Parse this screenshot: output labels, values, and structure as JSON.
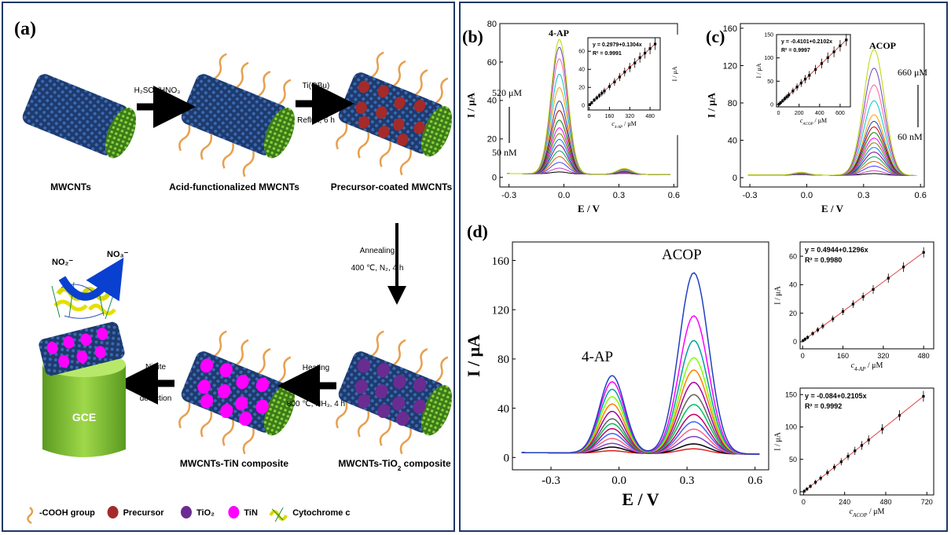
{
  "panel_a": {
    "label": "(a)",
    "steps": {
      "mwcnts": "MWCNTs",
      "acid": "Acid-functionalized MWCNTs",
      "precursor": "Precursor-coated MWCNTs",
      "tio2": "MWCNTs-TiO",
      "tio2_sub": "2",
      "tio2_tail": " composite",
      "tin": "MWCNTs-TiN composite",
      "gce": "GCE"
    },
    "arrows": {
      "a1": "H₂SO₄/HNO₃",
      "a2_line1": "Ti(OBu)",
      "a2_line2": "Reflux, 6 h",
      "a3_line1": "Annealing",
      "a3_line2": "400 ℃, N₂, 4 h",
      "a4_line1": "Heating",
      "a4_line2": "800 ℃, NH₃, 4 h",
      "a5_line1": "Nitrite",
      "a5_line2": "detection"
    },
    "ions": {
      "nitrite": "NO₂⁻",
      "nitrate": "NO₃⁻"
    },
    "legend": [
      {
        "label": "-COOH group",
        "icon": "cooh-squiggle-icon",
        "color": "#e6a050"
      },
      {
        "label": "Precursor",
        "icon": "precursor-dot-icon",
        "color": "#a52a2a"
      },
      {
        "label": "TiO₂",
        "icon": "tio2-dot-icon",
        "color": "#6a2c91"
      },
      {
        "label": "TiN",
        "icon": "tin-dot-icon",
        "color": "#ff00ff"
      },
      {
        "label": "Cytochrome c",
        "icon": "protein-icon",
        "color": "#d8d800"
      }
    ],
    "colors": {
      "tube": "#1e3a6e",
      "cap": "#5a9a2a",
      "gce": "#8ccf3a"
    }
  },
  "chart_data": [
    {
      "id": "b",
      "type": "line",
      "label": "(b)",
      "xlabel": "E / V",
      "ylabel": "I / μA",
      "xlim": [
        -0.35,
        0.62
      ],
      "ylim": [
        -5,
        80
      ],
      "xticks": [
        "-0.3",
        "0.0",
        "0.3",
        "0.6"
      ],
      "yticks": [
        "0",
        "20",
        "40",
        "60",
        "80"
      ],
      "annotations": {
        "peak": "4-AP",
        "high": "520 μM",
        "low": "50 nM"
      },
      "peaks": [
        {
          "center": -0.025,
          "width": 0.045,
          "heights": [
            1,
            3,
            6,
            9,
            12,
            15,
            18,
            21,
            24,
            28,
            33,
            38,
            45,
            52,
            60,
            66,
            70
          ]
        },
        {
          "center": 0.33,
          "width": 0.04,
          "heights": [
            0.5,
            0.5,
            0.6,
            0.7,
            0.8,
            0.9,
            1,
            1.1,
            1.2,
            1.4,
            1.6,
            1.8,
            2,
            2.2,
            2.5,
            2.8,
            3
          ]
        }
      ],
      "baseline": 2,
      "inset": {
        "equation": "y = 0.2979+0.1304x",
        "r2": "R² = 0.9991",
        "xlabel": "c",
        "xlabel_sub": "4-AP",
        "xlabel_unit": " / μM",
        "ylabel": "I / μA",
        "xlim": [
          -10,
          560
        ],
        "ylim": [
          -5,
          75
        ],
        "xticks": [
          "0",
          "160",
          "320",
          "480"
        ],
        "yticks": [
          "0",
          "20",
          "40",
          "60"
        ],
        "x": [
          5,
          20,
          40,
          60,
          80,
          100,
          120,
          160,
          200,
          240,
          280,
          320,
          360,
          400,
          440,
          480,
          520
        ],
        "y": [
          1,
          3,
          6,
          8.5,
          11,
          13.5,
          16,
          21,
          26,
          31.5,
          37,
          42,
          47,
          53,
          58,
          63,
          68
        ]
      }
    },
    {
      "id": "c",
      "type": "line",
      "label": "(c)",
      "xlabel": "E / V",
      "ylabel": "I / μA",
      "xlim": [
        -0.35,
        0.62
      ],
      "ylim": [
        -10,
        165
      ],
      "xticks": [
        "-0.3",
        "0.0",
        "0.3",
        "0.6"
      ],
      "yticks": [
        "0",
        "40",
        "80",
        "120",
        "160"
      ],
      "annotations": {
        "peak": "ACOP",
        "high": "660 μM",
        "low": "60 nM"
      },
      "peaks": [
        {
          "center": -0.03,
          "width": 0.04,
          "heights": [
            0.5,
            0.6,
            0.7,
            0.8,
            0.9,
            1,
            1.1,
            1.2,
            1.3,
            1.4,
            1.5,
            1.6,
            1.8,
            2,
            2.2,
            2.5,
            3
          ]
        },
        {
          "center": 0.355,
          "width": 0.055,
          "heights": [
            2,
            5,
            10,
            15,
            20,
            25,
            30,
            35,
            40,
            46,
            52,
            58,
            65,
            80,
            97,
            115,
            135
          ]
        }
      ],
      "baseline": 3,
      "inset": {
        "equation": "y = -0.4101+0.2102x",
        "r2": "R² = 0.9997",
        "xlabel": "c",
        "xlabel_sub": "ACOP",
        "xlabel_unit": " / μM",
        "ylabel": "I / μA",
        "xlim": [
          -20,
          700
        ],
        "ylim": [
          -5,
          150
        ],
        "xticks": [
          "0",
          "200",
          "400",
          "600"
        ],
        "yticks": [
          "0",
          "50",
          "100",
          "150"
        ],
        "x": [
          5,
          20,
          40,
          60,
          80,
          100,
          140,
          180,
          220,
          260,
          300,
          360,
          420,
          480,
          540,
          600,
          660
        ],
        "y": [
          1,
          4,
          8,
          12.5,
          16.5,
          20.5,
          29,
          37.5,
          46,
          54.5,
          62.5,
          75,
          88,
          100.5,
          113,
          126,
          138.5
        ]
      }
    },
    {
      "id": "d",
      "type": "line",
      "label": "(d)",
      "xlabel": "E / V",
      "ylabel": "I / μA",
      "xlim": [
        -0.47,
        0.66
      ],
      "ylim": [
        -10,
        175
      ],
      "xticks": [
        "-0.3",
        "0.0",
        "0.3",
        "0.6"
      ],
      "yticks": [
        "0",
        "40",
        "80",
        "120",
        "160"
      ],
      "annotations": {
        "peak1": "4-AP",
        "peak2": "ACOP"
      },
      "peaks": [
        {
          "center": -0.03,
          "width": 0.055,
          "heights": [
            2,
            5,
            8,
            12,
            16,
            20,
            24,
            28,
            34,
            40,
            46,
            52,
            58,
            63
          ]
        },
        {
          "center": 0.33,
          "width": 0.065,
          "heights": [
            4,
            8,
            14,
            20,
            26,
            32,
            40,
            48,
            58,
            68,
            78,
            92,
            112,
            147
          ]
        }
      ],
      "baseline": 4,
      "colors": [
        "#2040c0",
        "#ff00ff",
        "#00a0a0",
        "#80ff00",
        "#ff8000",
        "#a000a0",
        "#606060",
        "#00c060",
        "#c00060",
        "#4060ff",
        "#ff6080",
        "#8040c0",
        "#000000",
        "#e02020"
      ]
    },
    {
      "id": "d1",
      "type": "scatter",
      "equation": "y = 0.4944+0.1296x",
      "r2": "R² = 0.9980",
      "xlabel": "c",
      "xlabel_sub": "4-AP",
      "xlabel_unit": " / μM",
      "ylabel": "I / μA",
      "xlim": [
        -10,
        520
      ],
      "ylim": [
        -5,
        70
      ],
      "xticks": [
        "0",
        "160",
        "320",
        "480"
      ],
      "yticks": [
        "0",
        "20",
        "40",
        "60"
      ],
      "x": [
        2,
        10,
        20,
        40,
        60,
        80,
        120,
        160,
        200,
        240,
        280,
        340,
        400,
        480
      ],
      "y": [
        0.8,
        1.8,
        3,
        5.7,
        8.3,
        10.9,
        16,
        21.2,
        26.4,
        31.6,
        36.7,
        44.6,
        52.4,
        62.7
      ]
    },
    {
      "id": "d2",
      "type": "scatter",
      "equation": "y = -0.084+0.2105x",
      "r2": "R² = 0.9992",
      "xlabel": "c",
      "xlabel_sub": "ACOP",
      "xlabel_unit": " / μM",
      "ylabel": "I / μA",
      "xlim": [
        -20,
        760
      ],
      "ylim": [
        -5,
        160
      ],
      "xticks": [
        "0",
        "240",
        "480",
        "720"
      ],
      "yticks": [
        "0",
        "50",
        "100",
        "150"
      ],
      "x": [
        5,
        20,
        40,
        70,
        100,
        140,
        180,
        220,
        260,
        300,
        340,
        380,
        460,
        560,
        700
      ],
      "y": [
        1,
        4.1,
        8.3,
        14.6,
        20.9,
        29.4,
        37.8,
        46.2,
        54.6,
        63.1,
        71.5,
        79.9,
        96.7,
        117.8,
        147.3
      ]
    }
  ]
}
